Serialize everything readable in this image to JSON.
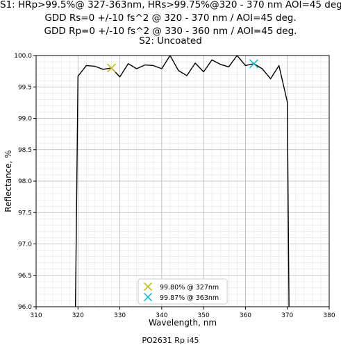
{
  "chart_data": {
    "type": "line",
    "title_lines": [
      "S1: HRp>99.5%@ 327-363nm, HRs>99.75%@320 - 370 nm AOI=45 deg.",
      "GDD Rs=0 +/-10 fs^2 @ 320 - 370 nm / AOI=45 deg.",
      "GDD Rp=0 +/-10 fs^2 @ 330 - 360 nm / AOI=45 deg.",
      "S2: Uncoated"
    ],
    "xlabel": "Wavelength, nm",
    "ylabel": "Reflectance, %",
    "xlim": [
      310,
      380
    ],
    "ylim": [
      96.0,
      100.0
    ],
    "xticks": [
      "310",
      "320",
      "330",
      "340",
      "350",
      "360",
      "370",
      "380"
    ],
    "yticks": [
      "96.0",
      "96.5",
      "97.0",
      "97.5",
      "98.0",
      "98.5",
      "99.0",
      "99.5",
      "100.0"
    ],
    "grid": true,
    "legend_position": "bottom-center",
    "series": [
      {
        "color": "#000000",
        "x": [
          319.4,
          320,
          322,
          324,
          326,
          328,
          330,
          332,
          334,
          336,
          338,
          340,
          342,
          344,
          346,
          348,
          350,
          352,
          354,
          356,
          358,
          360,
          362,
          364,
          366,
          368,
          370,
          370.4
        ],
        "y": [
          96.0,
          99.67,
          99.84,
          99.83,
          99.78,
          99.8,
          99.66,
          99.87,
          99.79,
          99.85,
          99.84,
          99.79,
          100.0,
          99.76,
          99.68,
          99.88,
          99.74,
          99.93,
          99.86,
          99.82,
          100.0,
          99.84,
          99.87,
          99.79,
          99.63,
          99.84,
          99.26,
          96.0
        ]
      }
    ],
    "markers": [
      {
        "x": 328,
        "y": 99.8,
        "color": "#bcbd22",
        "label": "99.80% @ 327nm"
      },
      {
        "x": 362,
        "y": 99.87,
        "color": "#17becf",
        "label": "99.87% @ 363nm"
      }
    ],
    "caption": "PO2631 Rp i45"
  }
}
